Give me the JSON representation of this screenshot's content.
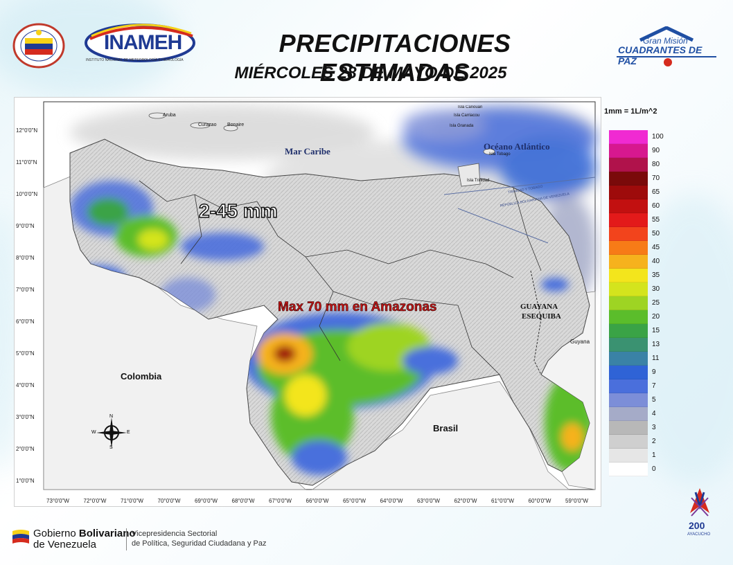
{
  "header": {
    "title": "PRECIPITACIONES ESTIMADAS",
    "subtitle": "MIÉRCOLES 28 DE MAYO DE 2025",
    "inameh_logo_text": "INAMEH",
    "inameh_tagline": "INSTITUTO NACIONAL DE METEOROLOGÍA E HIDROLOGÍA",
    "left_seal_text": "Gobierno del Poder Popular para el... Humanismo, Justicia y Paz",
    "gran_mision_line1": "Gran Misión",
    "gran_mision_line2": "CUADRANTES DE PAZ"
  },
  "map": {
    "labels": {
      "mar_caribe": "Mar Caribe",
      "oceano_atlantico": "Océano Atlántico",
      "colombia": "Colombia",
      "brasil": "Brasil",
      "guayana_esequiba_1": "GUAYANA",
      "guayana_esequiba_2": "ESEQUIBA",
      "guyana": "Guyana",
      "aruba": "Aruba",
      "curazao": "Curazao",
      "bonaire": "Bonaire",
      "isla_carriacou": "Isla Canouan",
      "isla_canouan": "Isla Carriacou",
      "isla_granada": "Isla Granada",
      "isla_tobago": "Isla Tobago",
      "isla_trinidad": "Isla Trinidad",
      "trinidad_tobago": "TRINIDAD Y TOBAGO",
      "rep_bolivariana": "REPÚBLICA BOLIVARIANA DE VENEZUELA",
      "range_annotation": "2-45 mm",
      "max_annotation": "Max 70 mm en Amazonas"
    },
    "compass": {
      "n": "N",
      "s": "S",
      "e": "E",
      "w": "W"
    },
    "lat_ticks": [
      "12°0'0\"N",
      "11°0'0\"N",
      "10°0'0\"N",
      "9°0'0\"N",
      "8°0'0\"N",
      "7°0'0\"N",
      "6°0'0\"N",
      "5°0'0\"N",
      "4°0'0\"N",
      "3°0'0\"N",
      "2°0'0\"N",
      "1°0'0\"N"
    ],
    "lon_ticks": [
      "73°0'0\"W",
      "72°0'0\"W",
      "71°0'0\"W",
      "70°0'0\"W",
      "69°0'0\"W",
      "68°0'0\"W",
      "67°0'0\"W",
      "66°0'0\"W",
      "65°0'0\"W",
      "64°0'0\"W",
      "63°0'0\"W",
      "62°0'0\"W",
      "61°0'0\"W",
      "60°0'0\"W",
      "59°0'0\"W"
    ]
  },
  "legend": {
    "unit": "1mm = 1L/m^2",
    "items": [
      {
        "label": "100",
        "color": "#f02ad2"
      },
      {
        "label": "90",
        "color": "#d7188f"
      },
      {
        "label": "80",
        "color": "#b0124b"
      },
      {
        "label": "70",
        "color": "#7a0a0a"
      },
      {
        "label": "65",
        "color": "#9e0b0b"
      },
      {
        "label": "60",
        "color": "#c21010"
      },
      {
        "label": "55",
        "color": "#e31a1a"
      },
      {
        "label": "50",
        "color": "#f2441c"
      },
      {
        "label": "45",
        "color": "#f77b17"
      },
      {
        "label": "40",
        "color": "#f6b21d"
      },
      {
        "label": "35",
        "color": "#f3e51c"
      },
      {
        "label": "30",
        "color": "#d4e41d"
      },
      {
        "label": "25",
        "color": "#9ed423"
      },
      {
        "label": "20",
        "color": "#5bbd2b"
      },
      {
        "label": "15",
        "color": "#3aa346"
      },
      {
        "label": "13",
        "color": "#3a9271"
      },
      {
        "label": "11",
        "color": "#3a82a6"
      },
      {
        "label": "9",
        "color": "#2f63d6"
      },
      {
        "label": "7",
        "color": "#4a6fdc"
      },
      {
        "label": "5",
        "color": "#7c8ed8"
      },
      {
        "label": "4",
        "color": "#a5abc8"
      },
      {
        "label": "3",
        "color": "#b8b8b8"
      },
      {
        "label": "2",
        "color": "#cfcfcf"
      },
      {
        "label": "1",
        "color": "#e6e6e6"
      },
      {
        "label": "0",
        "color": "#ffffff"
      }
    ]
  },
  "footer": {
    "gobierno_line1": "Gobierno",
    "gobierno_bold": "Bolivariano",
    "gobierno_line2": "de Venezuela",
    "vice_line1": "Vicepresidencia Sectorial",
    "vice_line2": "de Política, Seguridad Ciudadana y Paz",
    "badge_number": "200",
    "badge_text": "AYACUCHO"
  }
}
